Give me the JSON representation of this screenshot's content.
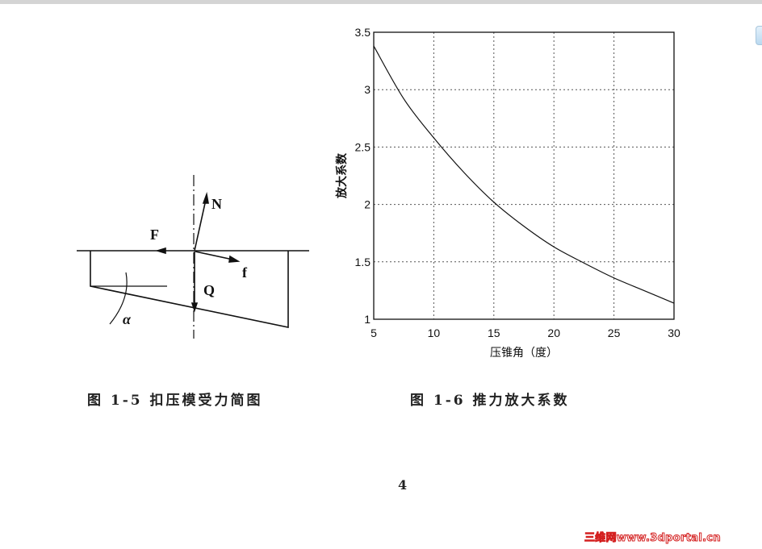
{
  "figure_left": {
    "labels": {
      "N": "N",
      "F": "F",
      "f": "f",
      "Q": "Q",
      "alpha": "α"
    },
    "caption": "图 1-5 扣压模受力简图"
  },
  "figure_right": {
    "caption": "图 1-6 推力放大系数"
  },
  "chart_data": {
    "type": "line",
    "xlabel": "压锥角（度）",
    "ylabel": "放大系数",
    "xlim": [
      5,
      30
    ],
    "ylim": [
      1,
      3.5
    ],
    "xticks": [
      "5",
      "10",
      "15",
      "20",
      "25",
      "30"
    ],
    "yticks": [
      "1",
      "1.5",
      "2",
      "2.5",
      "3",
      "3.5"
    ],
    "grid": true,
    "x": [
      5,
      7.5,
      10,
      12.5,
      15,
      17.5,
      20,
      22.5,
      25,
      27.5,
      30
    ],
    "y": [
      3.38,
      2.92,
      2.58,
      2.28,
      2.02,
      1.81,
      1.63,
      1.49,
      1.36,
      1.25,
      1.14
    ]
  },
  "page_number": "4",
  "watermark": "三维网www.3dportal.cn"
}
